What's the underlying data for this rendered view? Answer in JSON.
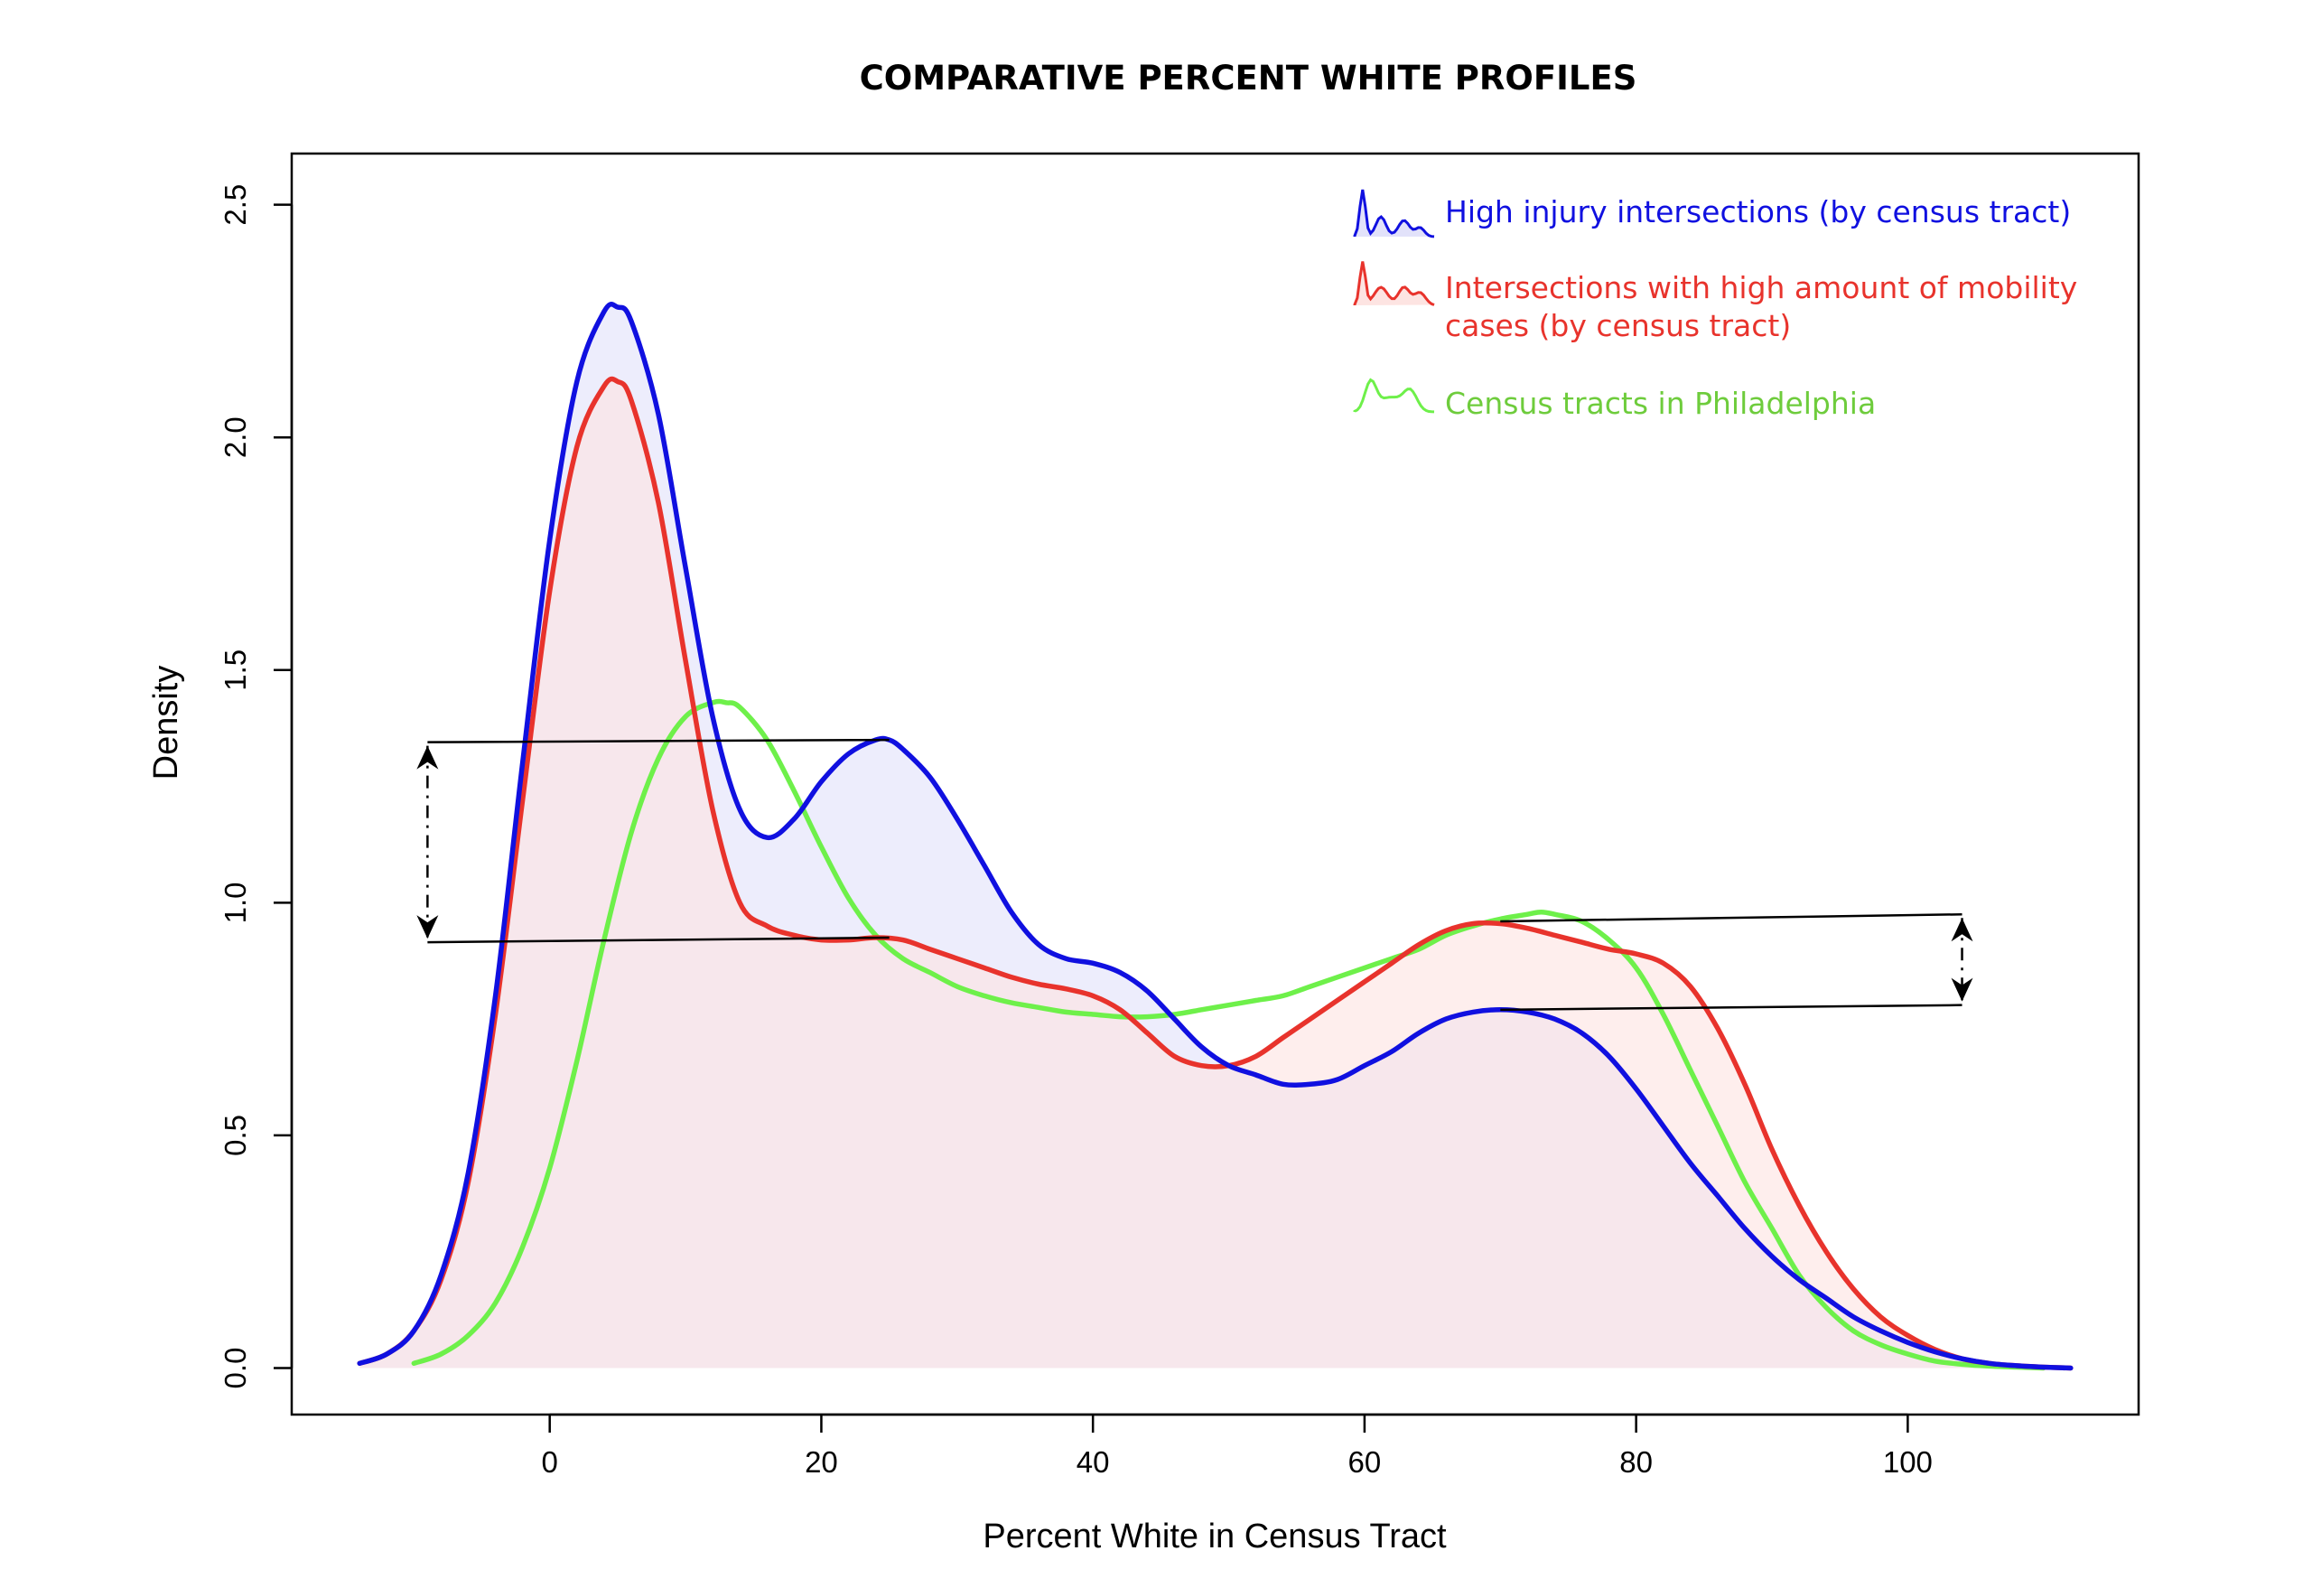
{
  "chart_data": {
    "type": "area",
    "title": "COMPARATIVE PERCENT WHITE PROFILES",
    "xlabel": "Percent White in Census Tract",
    "ylabel": "Density",
    "xlim": [
      -19,
      117
    ],
    "ylim": [
      -0.1,
      2.61
    ],
    "xticks": [
      0,
      20,
      40,
      60,
      80,
      100
    ],
    "yticks": [
      0.0,
      0.5,
      1.0,
      1.5,
      2.0,
      2.5
    ],
    "xtick_labels": [
      "0",
      "20",
      "40",
      "60",
      "80",
      "100"
    ],
    "ytick_labels": [
      "0.0",
      "0.5",
      "1.0",
      "1.5",
      "2.0",
      "2.5"
    ],
    "grid": false,
    "legend_position": "top-right",
    "series": [
      {
        "name": "High injury intersections (by census tract)",
        "color": "#1010e0",
        "fill": "#e2e2fa",
        "filled": true,
        "x": [
          -14,
          -12,
          -10,
          -8,
          -6,
          -4,
          -2,
          0,
          2,
          4,
          5,
          6,
          8,
          10,
          12,
          14,
          16,
          18,
          20,
          22,
          24,
          25,
          26,
          28,
          30,
          32,
          34,
          36,
          38,
          40,
          42,
          44,
          46,
          48,
          50,
          52,
          54,
          56,
          58,
          60,
          62,
          64,
          66,
          68,
          70,
          72,
          74,
          76,
          78,
          80,
          82,
          84,
          86,
          88,
          90,
          92,
          94,
          96,
          98,
          100,
          102,
          104,
          106,
          108,
          110,
          112
        ],
        "values": [
          0.01,
          0.03,
          0.08,
          0.2,
          0.42,
          0.8,
          1.3,
          1.78,
          2.12,
          2.27,
          2.28,
          2.25,
          2.05,
          1.72,
          1.4,
          1.2,
          1.14,
          1.18,
          1.26,
          1.32,
          1.35,
          1.35,
          1.33,
          1.27,
          1.18,
          1.08,
          0.98,
          0.91,
          0.88,
          0.87,
          0.85,
          0.81,
          0.75,
          0.69,
          0.65,
          0.63,
          0.61,
          0.61,
          0.62,
          0.65,
          0.68,
          0.72,
          0.75,
          0.765,
          0.77,
          0.765,
          0.75,
          0.72,
          0.67,
          0.6,
          0.52,
          0.44,
          0.37,
          0.3,
          0.24,
          0.19,
          0.15,
          0.11,
          0.08,
          0.055,
          0.035,
          0.02,
          0.01,
          0.005,
          0.002,
          0.0
        ]
      },
      {
        "name": "Intersections with high amount of mobility cases (by census tract)",
        "color": "#e8332c",
        "fill": "#fde4e2",
        "filled": true,
        "x": [
          -14,
          -12,
          -10,
          -8,
          -6,
          -4,
          -2,
          0,
          2,
          4,
          5,
          6,
          8,
          10,
          12,
          14,
          16,
          18,
          20,
          22,
          24,
          26,
          28,
          30,
          32,
          34,
          36,
          38,
          40,
          42,
          44,
          46,
          48,
          50,
          52,
          54,
          56,
          58,
          60,
          62,
          64,
          66,
          68,
          70,
          72,
          74,
          76,
          78,
          80,
          82,
          84,
          86,
          88,
          90,
          92,
          94,
          96,
          98,
          100,
          102,
          104,
          106,
          108,
          110,
          112
        ],
        "values": [
          0.01,
          0.03,
          0.08,
          0.19,
          0.4,
          0.76,
          1.22,
          1.67,
          1.98,
          2.11,
          2.12,
          2.08,
          1.86,
          1.52,
          1.2,
          1.0,
          0.95,
          0.93,
          0.92,
          0.92,
          0.925,
          0.92,
          0.9,
          0.88,
          0.86,
          0.84,
          0.825,
          0.815,
          0.8,
          0.77,
          0.72,
          0.67,
          0.65,
          0.65,
          0.67,
          0.71,
          0.75,
          0.79,
          0.83,
          0.87,
          0.91,
          0.94,
          0.955,
          0.955,
          0.945,
          0.93,
          0.915,
          0.9,
          0.89,
          0.87,
          0.82,
          0.73,
          0.61,
          0.47,
          0.35,
          0.25,
          0.17,
          0.11,
          0.07,
          0.04,
          0.02,
          0.01,
          0.005,
          0.002,
          0.0
        ]
      },
      {
        "name": "Census tracts in Philadelphia",
        "color": "#6ef04a",
        "fill": null,
        "filled": false,
        "x": [
          -10,
          -8,
          -6,
          -4,
          -2,
          0,
          2,
          4,
          6,
          8,
          10,
          12,
          13,
          14,
          16,
          18,
          20,
          22,
          24,
          26,
          28,
          30,
          32,
          34,
          36,
          38,
          40,
          42,
          44,
          46,
          48,
          50,
          52,
          54,
          56,
          58,
          60,
          62,
          64,
          66,
          68,
          70,
          72,
          73,
          74,
          76,
          78,
          80,
          82,
          84,
          86,
          88,
          90,
          92,
          94,
          96,
          98,
          100,
          102,
          104,
          106,
          108,
          110
        ],
        "values": [
          0.01,
          0.03,
          0.07,
          0.14,
          0.26,
          0.43,
          0.66,
          0.92,
          1.15,
          1.31,
          1.4,
          1.43,
          1.43,
          1.42,
          1.35,
          1.24,
          1.12,
          1.01,
          0.93,
          0.88,
          0.85,
          0.82,
          0.8,
          0.785,
          0.775,
          0.765,
          0.76,
          0.755,
          0.755,
          0.76,
          0.77,
          0.78,
          0.79,
          0.8,
          0.82,
          0.84,
          0.86,
          0.88,
          0.9,
          0.93,
          0.95,
          0.965,
          0.975,
          0.98,
          0.975,
          0.96,
          0.92,
          0.86,
          0.76,
          0.64,
          0.52,
          0.4,
          0.3,
          0.2,
          0.13,
          0.08,
          0.05,
          0.03,
          0.015,
          0.008,
          0.004,
          0.002,
          0.0
        ]
      }
    ],
    "annotations": [
      {
        "type": "range-arrow",
        "x_start": -9,
        "x_end": 25,
        "y_top": 1.345,
        "y_bottom": 0.915,
        "arrow_x": -9,
        "y_top_at_end": 1.35,
        "y_bottom_at_end": 0.925
      },
      {
        "type": "range-arrow",
        "x_start": 70,
        "x_end": 104,
        "y_top": 0.96,
        "y_bottom": 0.77,
        "arrow_x": 104,
        "y_top_at_end": 0.975,
        "y_bottom_at_end": 0.78
      }
    ]
  }
}
